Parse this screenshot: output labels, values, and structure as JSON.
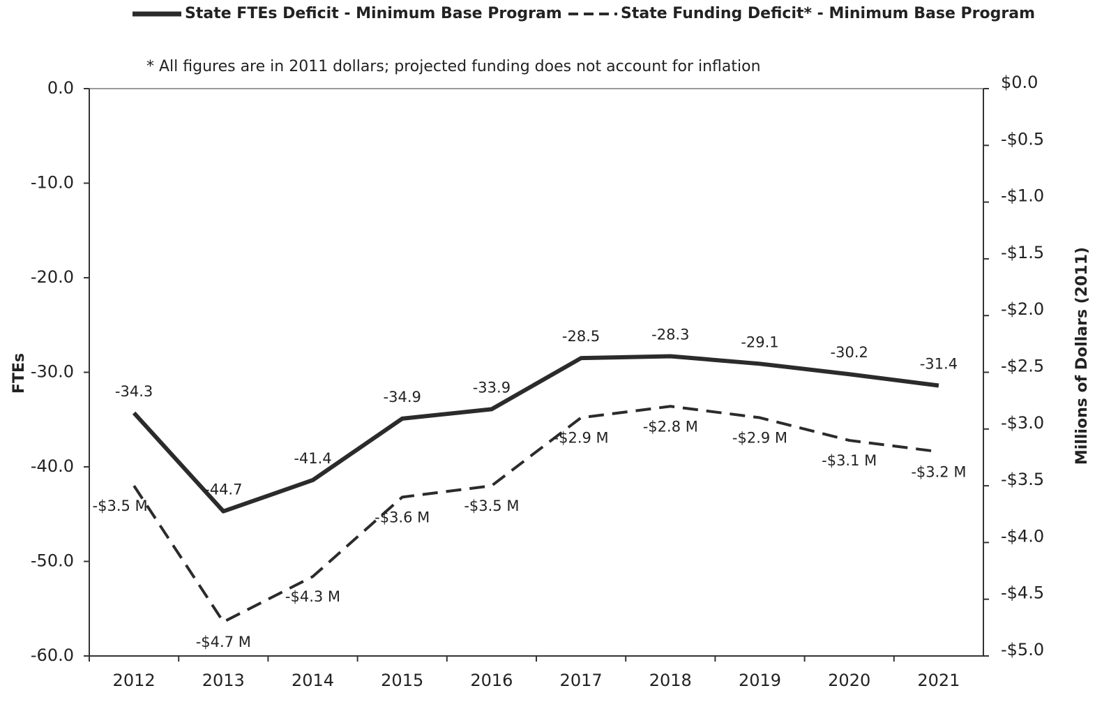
{
  "chart_data": {
    "type": "line",
    "legend": "top",
    "note": "* All figures are in 2011 dollars; projected funding does not account for inflation",
    "ylabel": "FTEs",
    "y2label": "Millions of Dollars (2011)",
    "categories": [
      "2012",
      "2013",
      "2014",
      "2015",
      "2016",
      "2017",
      "2018",
      "2019",
      "2020",
      "2021"
    ],
    "series": [
      {
        "name": "State FTEs Deficit - Minimum Base Program",
        "color": "#2b2b2b",
        "line_style": "solid",
        "values": [
          -34.3,
          -44.7,
          -41.4,
          -34.9,
          -33.9,
          -28.5,
          -28.3,
          -29.1,
          -30.2,
          -31.4
        ]
      },
      {
        "name": "State Funding Deficit* - Minimum Base Program",
        "color": "#2b2b2b",
        "line_style": "dashed",
        "axis": "y2",
        "values": [
          -3.5,
          -4.7,
          -4.3,
          -3.6,
          -3.5,
          -2.9,
          -2.8,
          -2.9,
          -3.1,
          -3.2
        ],
        "value_labels": [
          "-$3.5 M",
          "-$4.7 M",
          "-$4.3 M",
          "-$3.6 M",
          "-$3.5 M",
          "-$2.9 M",
          "-$2.8 M",
          "-$2.9 M",
          "-$3.1 M",
          "-$3.2 M"
        ]
      }
    ],
    "ylim": [
      -60,
      0
    ],
    "yticks": [
      {
        "value": 0,
        "label": "0.0"
      },
      {
        "value": -10,
        "label": "-10.0"
      },
      {
        "value": -20,
        "label": "-20.0"
      },
      {
        "value": -30,
        "label": "-30.0"
      },
      {
        "value": -40,
        "label": "-40.0"
      },
      {
        "value": -50,
        "label": "-50.0"
      },
      {
        "value": -60,
        "label": "-60.0"
      }
    ],
    "y2lim": [
      -5,
      0
    ],
    "y2ticks": [
      {
        "value": 0,
        "label": "$0.0"
      },
      {
        "value": -0.5,
        "label": "-$0.5"
      },
      {
        "value": -1,
        "label": "-$1.0"
      },
      {
        "value": -1.5,
        "label": "-$1.5"
      },
      {
        "value": -2,
        "label": "-$2.0"
      },
      {
        "value": -2.5,
        "label": "-$2.5"
      },
      {
        "value": -3,
        "label": "-$3.0"
      },
      {
        "value": -3.5,
        "label": "-$3.5"
      },
      {
        "value": -4,
        "label": "-$4.0"
      },
      {
        "value": -4.5,
        "label": "-$4.5"
      },
      {
        "value": -5,
        "label": "-$5.0"
      }
    ]
  }
}
